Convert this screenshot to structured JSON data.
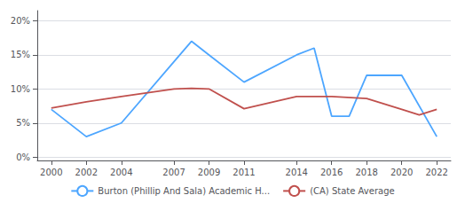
{
  "chart_data": {
    "type": "line",
    "series": [
      {
        "name": "Burton (Phillip And Sala) Academic H...",
        "color": "#4da6ff",
        "x": [
          2000,
          2002,
          2004,
          2007,
          2008,
          2009,
          2011,
          2014,
          2015,
          2016,
          2017,
          2018,
          2020,
          2022
        ],
        "values": [
          0.07,
          0.03,
          0.05,
          0.14,
          0.17,
          0.15,
          0.11,
          0.15,
          0.16,
          0.06,
          0.06,
          0.12,
          0.12,
          0.03
        ]
      },
      {
        "name": "(CA) State Average",
        "color": "#c0504d",
        "x": [
          2000,
          2002,
          2004,
          2007,
          2008,
          2009,
          2011,
          2014,
          2015,
          2016,
          2018,
          2020,
          2021,
          2022
        ],
        "values": [
          0.072,
          0.081,
          0.089,
          0.1,
          0.101,
          0.1,
          0.071,
          0.089,
          0.089,
          0.089,
          0.086,
          0.07,
          0.062,
          0.07
        ]
      }
    ],
    "xlim": [
      1999.2,
      2022.8
    ],
    "xticks": [
      2000,
      2002,
      2004,
      2007,
      2009,
      2011,
      2014,
      2016,
      2018,
      2020,
      2022
    ],
    "ylim": [
      -0.005,
      0.215
    ],
    "yticks": [
      {
        "value": 0.0,
        "label": "0%"
      },
      {
        "value": 0.05,
        "label": "5%"
      },
      {
        "value": 0.1,
        "label": "10%"
      },
      {
        "value": 0.15,
        "label": "15%"
      },
      {
        "value": 0.2,
        "label": "20%"
      }
    ],
    "grid": true,
    "legend": "bottom"
  }
}
